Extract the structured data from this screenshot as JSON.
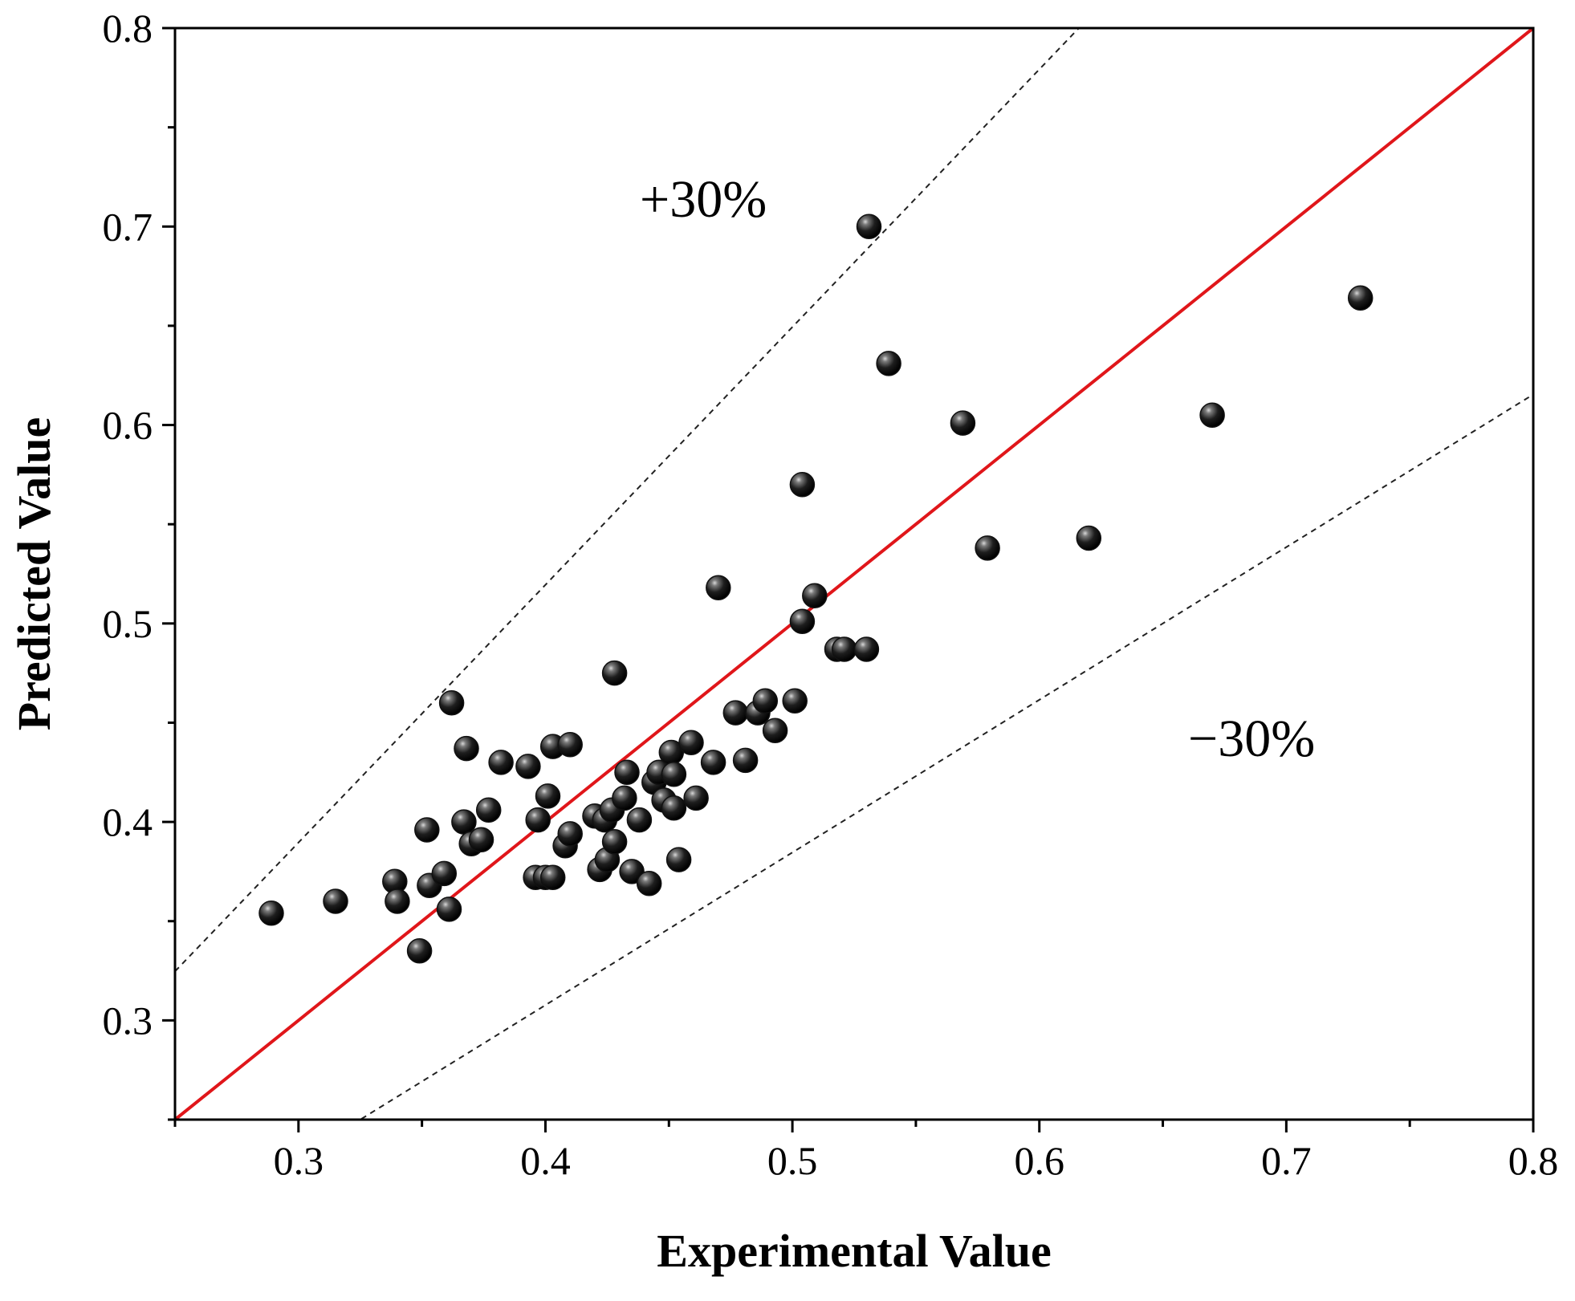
{
  "chart_data": {
    "type": "scatter",
    "title": "",
    "xlabel": "Experimental Value",
    "ylabel": "Predicted Value",
    "xlim": [
      0.25,
      0.8
    ],
    "ylim": [
      0.25,
      0.8
    ],
    "x_ticks": [
      "0.3",
      "0.4",
      "0.5",
      "0.6",
      "0.7",
      "0.8"
    ],
    "y_ticks": [
      "0.3",
      "0.4",
      "0.5",
      "0.6",
      "0.7",
      "0.8"
    ],
    "grid": false,
    "legend": "none",
    "reference_lines": [
      {
        "kind": "y=x",
        "style": "solid",
        "color": "#e0161a"
      },
      {
        "kind": "+30%",
        "style": "dashed",
        "color": "#222222"
      },
      {
        "kind": "-30%",
        "style": "dashed",
        "color": "#222222"
      }
    ],
    "annotations": [
      {
        "name": "plus-30-label",
        "text": "+30%"
      },
      {
        "name": "minus-30-label",
        "text": "−30%"
      }
    ],
    "marker_color": "#111111",
    "points": [
      [
        0.289,
        0.354
      ],
      [
        0.315,
        0.36
      ],
      [
        0.339,
        0.37
      ],
      [
        0.34,
        0.36
      ],
      [
        0.349,
        0.335
      ],
      [
        0.352,
        0.396
      ],
      [
        0.353,
        0.368
      ],
      [
        0.359,
        0.374
      ],
      [
        0.361,
        0.356
      ],
      [
        0.362,
        0.46
      ],
      [
        0.367,
        0.4
      ],
      [
        0.368,
        0.437
      ],
      [
        0.37,
        0.389
      ],
      [
        0.374,
        0.391
      ],
      [
        0.377,
        0.406
      ],
      [
        0.382,
        0.43
      ],
      [
        0.393,
        0.428
      ],
      [
        0.396,
        0.372
      ],
      [
        0.397,
        0.401
      ],
      [
        0.4,
        0.372
      ],
      [
        0.401,
        0.413
      ],
      [
        0.403,
        0.372
      ],
      [
        0.403,
        0.438
      ],
      [
        0.408,
        0.388
      ],
      [
        0.41,
        0.394
      ],
      [
        0.41,
        0.439
      ],
      [
        0.42,
        0.403
      ],
      [
        0.422,
        0.376
      ],
      [
        0.424,
        0.401
      ],
      [
        0.425,
        0.381
      ],
      [
        0.427,
        0.406
      ],
      [
        0.428,
        0.39
      ],
      [
        0.428,
        0.475
      ],
      [
        0.432,
        0.412
      ],
      [
        0.433,
        0.425
      ],
      [
        0.435,
        0.375
      ],
      [
        0.438,
        0.401
      ],
      [
        0.442,
        0.369
      ],
      [
        0.444,
        0.42
      ],
      [
        0.446,
        0.425
      ],
      [
        0.448,
        0.411
      ],
      [
        0.451,
        0.435
      ],
      [
        0.452,
        0.407
      ],
      [
        0.452,
        0.424
      ],
      [
        0.454,
        0.381
      ],
      [
        0.459,
        0.44
      ],
      [
        0.461,
        0.412
      ],
      [
        0.468,
        0.43
      ],
      [
        0.47,
        0.518
      ],
      [
        0.477,
        0.455
      ],
      [
        0.481,
        0.431
      ],
      [
        0.486,
        0.455
      ],
      [
        0.489,
        0.461
      ],
      [
        0.493,
        0.446
      ],
      [
        0.501,
        0.461
      ],
      [
        0.504,
        0.501
      ],
      [
        0.504,
        0.57
      ],
      [
        0.509,
        0.514
      ],
      [
        0.518,
        0.487
      ],
      [
        0.521,
        0.487
      ],
      [
        0.53,
        0.487
      ],
      [
        0.531,
        0.7
      ],
      [
        0.539,
        0.631
      ],
      [
        0.569,
        0.601
      ],
      [
        0.579,
        0.538
      ],
      [
        0.62,
        0.543
      ],
      [
        0.67,
        0.605
      ],
      [
        0.73,
        0.664
      ]
    ]
  }
}
